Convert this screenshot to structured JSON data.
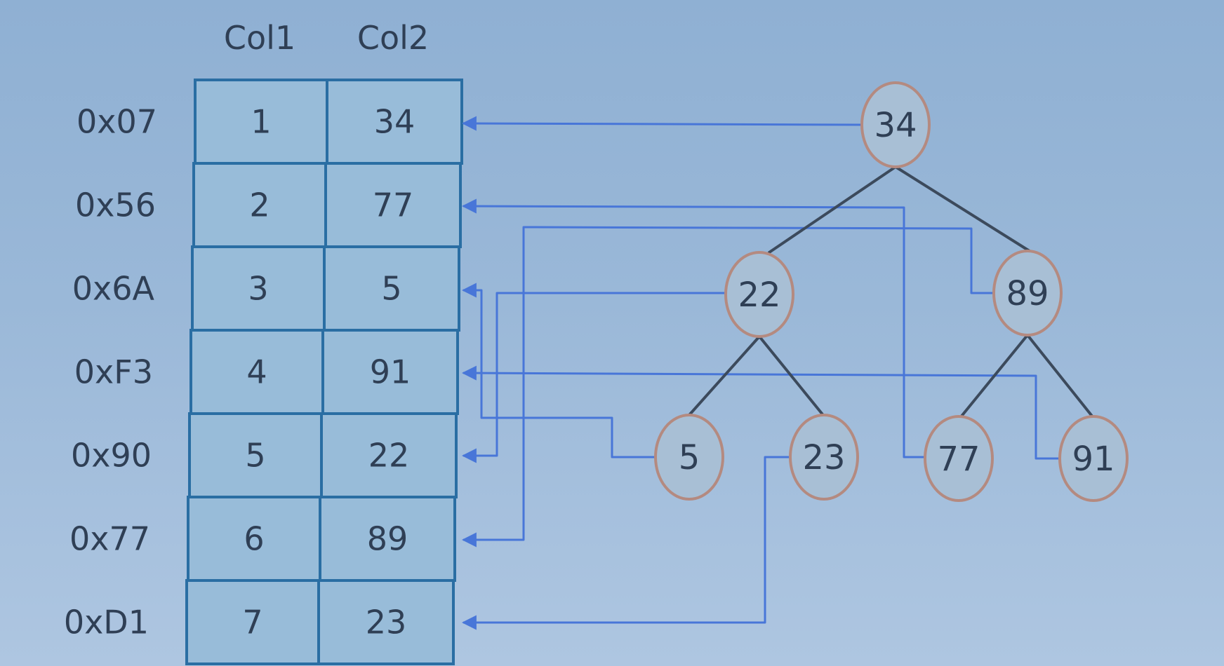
{
  "table": {
    "columns": [
      "Col1",
      "Col2"
    ],
    "rows": [
      {
        "address": "0x07",
        "col1": "1",
        "col2": "34"
      },
      {
        "address": "0x56",
        "col1": "2",
        "col2": "77"
      },
      {
        "address": "0x6A",
        "col1": "3",
        "col2": "5"
      },
      {
        "address": "0xF3",
        "col1": "4",
        "col2": "91"
      },
      {
        "address": "0x90",
        "col1": "5",
        "col2": "22"
      },
      {
        "address": "0x77",
        "col1": "6",
        "col2": "89"
      },
      {
        "address": "0xD1",
        "col1": "7",
        "col2": "23"
      }
    ]
  },
  "tree": {
    "nodes": [
      {
        "id": "n34",
        "label": "34",
        "parent": null,
        "row": 0
      },
      {
        "id": "n22",
        "label": "22",
        "parent": "n34",
        "row": 4
      },
      {
        "id": "n89",
        "label": "89",
        "parent": "n34",
        "row": 5
      },
      {
        "id": "n5",
        "label": "5",
        "parent": "n22",
        "row": 2
      },
      {
        "id": "n23",
        "label": "23",
        "parent": "n22",
        "row": 6
      },
      {
        "id": "n77",
        "label": "77",
        "parent": "n89",
        "row": 1
      },
      {
        "id": "n91",
        "label": "91",
        "parent": "n89",
        "row": 3
      }
    ]
  },
  "colors": {
    "background": "#9ab8d8",
    "cell_fill": "#98bcd9",
    "cell_border": "#2a6ea3",
    "text": "#2f3f55",
    "pointer_line": "#4876d8",
    "tree_edge": "#3c4a5c",
    "node_border": "#b48a80"
  }
}
